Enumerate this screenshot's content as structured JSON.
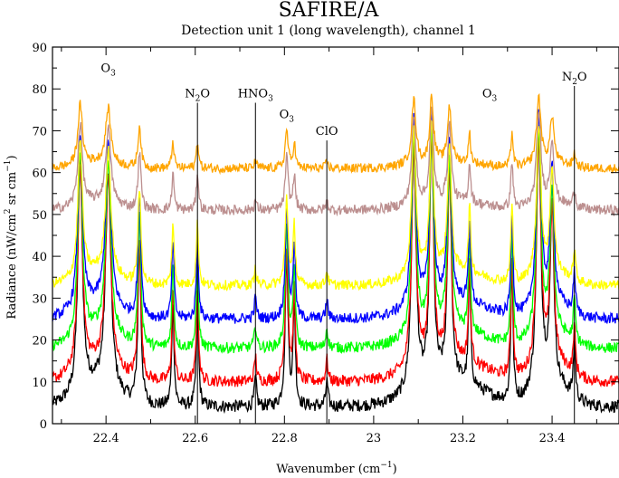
{
  "chart_data": {
    "type": "line",
    "title": "SAFIRE/A",
    "subtitle": "Detection unit 1 (long wavelength), channel 1",
    "xlabel": {
      "text": "Wavenumber (cm",
      "sup": "−1",
      "close": ")"
    },
    "ylabel": {
      "text": "Radiance (nW/cm",
      "sup2": "2",
      "mid": " sr cm",
      "sup": "−1",
      "close": ")"
    },
    "xlim": [
      22.28,
      23.55
    ],
    "ylim": [
      0,
      90
    ],
    "xticks": [
      22.4,
      22.6,
      22.8,
      23,
      23.2,
      23.4
    ],
    "xtick_labels": [
      "22.4",
      "22.6",
      "22.8",
      "23",
      "23.2",
      "23.4"
    ],
    "yticks": [
      0,
      10,
      20,
      30,
      40,
      50,
      60,
      70,
      80,
      90
    ],
    "ytick_labels": [
      "0",
      "10",
      "20",
      "30",
      "40",
      "50",
      "60",
      "70",
      "80",
      "90"
    ],
    "grid": false,
    "legend": "none",
    "series": [
      {
        "color": "#000000",
        "baseline": 4,
        "scale": 0.85,
        "noise": 1.5
      },
      {
        "color": "#ff0000",
        "baseline": 10,
        "scale": 0.75,
        "noise": 1.4
      },
      {
        "color": "#00ff00",
        "baseline": 18,
        "scale": 0.68,
        "noise": 1.3
      },
      {
        "color": "#0000ff",
        "baseline": 25,
        "scale": 0.64,
        "noise": 1.3
      },
      {
        "color": "#ffff00",
        "baseline": 33,
        "scale": 0.5,
        "noise": 1.2
      },
      {
        "color": "#bc8f8f",
        "baseline": 51,
        "scale": 0.3,
        "noise": 1.2
      },
      {
        "color": "#ffa500",
        "baseline": 61,
        "scale": 0.22,
        "noise": 1.1
      }
    ],
    "lines": [
      {
        "x": 22.342,
        "amp": 65,
        "w": 0.006
      },
      {
        "x": 22.405,
        "amp": 60,
        "w": 0.007
      },
      {
        "x": 22.475,
        "amp": 45,
        "w": 0.004
      },
      {
        "x": 22.55,
        "amp": 30,
        "w": 0.003
      },
      {
        "x": 22.605,
        "amp": 30,
        "w": 0.003
      },
      {
        "x": 22.735,
        "amp": 8,
        "w": 0.003
      },
      {
        "x": 22.805,
        "amp": 42,
        "w": 0.004
      },
      {
        "x": 22.822,
        "amp": 28,
        "w": 0.003
      },
      {
        "x": 22.895,
        "amp": 7,
        "w": 0.003
      },
      {
        "x": 23.09,
        "amp": 70,
        "w": 0.006
      },
      {
        "x": 23.13,
        "amp": 72,
        "w": 0.005
      },
      {
        "x": 23.17,
        "amp": 60,
        "w": 0.005
      },
      {
        "x": 23.215,
        "amp": 32,
        "w": 0.003
      },
      {
        "x": 23.31,
        "amp": 38,
        "w": 0.003
      },
      {
        "x": 23.37,
        "amp": 72,
        "w": 0.006
      },
      {
        "x": 23.4,
        "amp": 50,
        "w": 0.005
      },
      {
        "x": 23.45,
        "amp": 15,
        "w": 0.003
      }
    ],
    "annotations": [
      {
        "label": "O",
        "sub": "3",
        "x": 22.405,
        "y": 84,
        "line": false
      },
      {
        "label": "N",
        "sub": "2",
        "tail": "O",
        "x": 22.605,
        "y": 78,
        "line": true
      },
      {
        "label": "HNO",
        "sub": "3",
        "x": 22.735,
        "y": 78,
        "line": true
      },
      {
        "label": "O",
        "sub": "3",
        "x": 22.805,
        "y": 73,
        "line": false
      },
      {
        "label": "ClO",
        "x": 22.895,
        "y": 69,
        "line": true
      },
      {
        "label": "O",
        "sub": "3",
        "x": 23.26,
        "y": 78,
        "line": false
      },
      {
        "label": "N",
        "sub": "2",
        "tail": "O",
        "x": 23.45,
        "y": 82,
        "line": true
      }
    ]
  }
}
